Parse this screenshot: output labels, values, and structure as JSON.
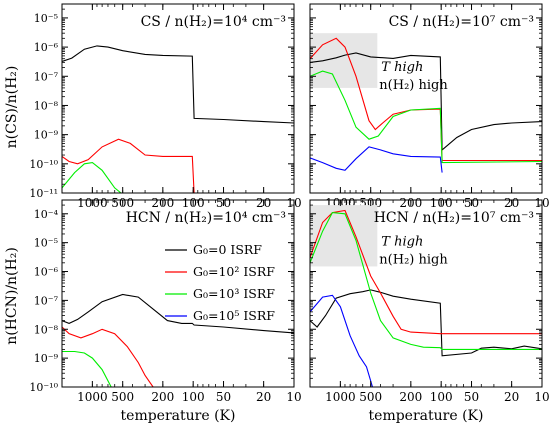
{
  "figure": {
    "shared_xlabel": "temperature (K)",
    "legend": {
      "entries": [
        {
          "label": "G₀=0 ISRF",
          "color": "#000000"
        },
        {
          "label": "G₀=10² ISRF",
          "color": "#ff0000"
        },
        {
          "label": "G₀=10³ ISRF",
          "color": "#00ee00"
        },
        {
          "label": "G₀=10⁵ ISRF",
          "color": "#0000ff"
        }
      ]
    },
    "annotation": {
      "line1": "T high",
      "line2": "n(H₂) high"
    }
  },
  "chart_data": [
    {
      "type": "line",
      "title": "CS / n(H₂)=10⁴ cm⁻³",
      "xlabel": "temperature (K)",
      "ylabel": "n(CS)/n(H₂)",
      "x_scale": "log (reversed)",
      "xlim": [
        2000,
        10
      ],
      "y_scale": "log",
      "ylim": [
        1e-11,
        3e-05
      ],
      "x_ticks": [
        1000,
        500,
        200,
        100,
        50,
        20,
        10
      ],
      "y_ticks": [
        "10⁻¹¹",
        "10⁻¹⁰",
        "10⁻⁹",
        "10⁻⁸",
        "10⁻⁷",
        "10⁻⁶",
        "10⁻⁵"
      ],
      "series": [
        {
          "name": "G₀=0 ISRF",
          "color": "#000000",
          "points": [
            [
              2000,
              3.2e-07
            ],
            [
              1600,
              4.2e-07
            ],
            [
              1200,
              8.5e-07
            ],
            [
              900,
              1.1e-06
            ],
            [
              700,
              1e-06
            ],
            [
              500,
              7.5e-07
            ],
            [
              300,
              5.6e-07
            ],
            [
              200,
              5.2e-07
            ],
            [
              102,
              4.9e-07
            ],
            [
              98,
              3.6e-09
            ],
            [
              50,
              3.3e-09
            ],
            [
              20,
              2.8e-09
            ],
            [
              10,
              2.5e-09
            ]
          ]
        },
        {
          "name": "G₀=10² ISRF",
          "color": "#ff0000",
          "points": [
            [
              2000,
              1.8e-10
            ],
            [
              1700,
              1.2e-10
            ],
            [
              1400,
              1e-10
            ],
            [
              1100,
              1.4e-10
            ],
            [
              800,
              3.8e-10
            ],
            [
              550,
              7e-10
            ],
            [
              420,
              5e-10
            ],
            [
              300,
              2e-10
            ],
            [
              200,
              1.8e-10
            ],
            [
              102,
              1.8e-10
            ],
            [
              98,
              1e-11
            ]
          ]
        },
        {
          "name": "G₀=10³ ISRF",
          "color": "#00ee00",
          "points": [
            [
              2000,
              1.5e-11
            ],
            [
              1500,
              5e-11
            ],
            [
              1200,
              1e-10
            ],
            [
              1000,
              1.1e-10
            ],
            [
              800,
              6e-11
            ],
            [
              600,
              1.5e-11
            ],
            [
              520,
              1e-11
            ]
          ]
        }
      ]
    },
    {
      "type": "line",
      "title": "CS / n(H₂)=10⁷ cm⁻³",
      "xlabel": "temperature (K)",
      "x_scale": "log (reversed)",
      "xlim": [
        2000,
        10
      ],
      "y_scale": "log",
      "ylim": [
        1e-11,
        3e-05
      ],
      "x_ticks": [
        1000,
        500,
        200,
        100,
        50,
        20,
        10
      ],
      "series": [
        {
          "name": "G₀=0 ISRF",
          "color": "#000000",
          "points": [
            [
              2000,
              3e-07
            ],
            [
              1500,
              3.4e-07
            ],
            [
              1100,
              4.3e-07
            ],
            [
              900,
              5.3e-07
            ],
            [
              700,
              6.3e-07
            ],
            [
              500,
              4.6e-07
            ],
            [
              300,
              4.1e-07
            ],
            [
              200,
              5.2e-07
            ],
            [
              102,
              4.6e-07
            ],
            [
              98,
              3e-10
            ],
            [
              70,
              8e-10
            ],
            [
              50,
              1.5e-09
            ],
            [
              30,
              2.2e-09
            ],
            [
              20,
              2.5e-09
            ],
            [
              10,
              2.8e-09
            ]
          ]
        },
        {
          "name": "G₀=10² ISRF",
          "color": "#ff0000",
          "points": [
            [
              2000,
              4e-07
            ],
            [
              1500,
              1.2e-06
            ],
            [
              1100,
              2e-06
            ],
            [
              900,
              1e-06
            ],
            [
              700,
              1e-07
            ],
            [
              520,
              3e-09
            ],
            [
              450,
              1.5e-09
            ],
            [
              380,
              2.5e-09
            ],
            [
              300,
              5e-09
            ],
            [
              200,
              7e-09
            ],
            [
              102,
              7.5e-09
            ],
            [
              98,
              1.3e-10
            ],
            [
              10,
              1.3e-10
            ]
          ]
        },
        {
          "name": "G₀=10³ ISRF",
          "color": "#00ee00",
          "points": [
            [
              2000,
              1e-07
            ],
            [
              1500,
              1.5e-07
            ],
            [
              1200,
              1.2e-07
            ],
            [
              900,
              1.5e-08
            ],
            [
              700,
              1.8e-09
            ],
            [
              520,
              7e-10
            ],
            [
              420,
              9e-10
            ],
            [
              300,
              4.2e-09
            ],
            [
              200,
              7e-09
            ],
            [
              102,
              8e-09
            ],
            [
              98,
              1.1e-10
            ],
            [
              10,
              1.2e-10
            ]
          ]
        },
        {
          "name": "G₀=10⁵ ISRF",
          "color": "#0000ff",
          "points": [
            [
              2000,
              1.6e-10
            ],
            [
              1500,
              1.1e-10
            ],
            [
              1100,
              7e-11
            ],
            [
              900,
              6e-11
            ],
            [
              700,
              1.5e-10
            ],
            [
              520,
              3.8e-10
            ],
            [
              400,
              3e-10
            ],
            [
              300,
              2.2e-10
            ],
            [
              200,
              1.8e-10
            ],
            [
              102,
              1.7e-10
            ],
            [
              98,
              5e-11
            ]
          ]
        }
      ]
    },
    {
      "type": "line",
      "title": "HCN / n(H₂)=10⁴ cm⁻³",
      "xlabel": "temperature (K)",
      "ylabel": "n(HCN)/n(H₂)",
      "x_scale": "log (reversed)",
      "xlim": [
        2000,
        10
      ],
      "y_scale": "log",
      "ylim": [
        1e-10,
        0.0003
      ],
      "x_ticks": [
        1000,
        500,
        200,
        100,
        50,
        20,
        10
      ],
      "y_ticks": [
        "10⁻¹⁰",
        "10⁻⁹",
        "10⁻⁸",
        "10⁻⁷",
        "10⁻⁶",
        "10⁻⁵",
        "10⁻⁴"
      ],
      "series": [
        {
          "name": "G₀=0 ISRF",
          "color": "#000000",
          "points": [
            [
              2000,
              2e-08
            ],
            [
              1700,
              1.6e-08
            ],
            [
              1400,
              2.2e-08
            ],
            [
              1100,
              4e-08
            ],
            [
              800,
              9e-08
            ],
            [
              500,
              1.6e-07
            ],
            [
              350,
              1.3e-07
            ],
            [
              250,
              5e-08
            ],
            [
              180,
              2e-08
            ],
            [
              130,
              1.6e-08
            ],
            [
              102,
              1.6e-08
            ],
            [
              98,
              1.4e-08
            ],
            [
              50,
              1.2e-08
            ],
            [
              20,
              9e-09
            ],
            [
              10,
              7.5e-09
            ]
          ]
        },
        {
          "name": "G₀=10² ISRF",
          "color": "#ff0000",
          "points": [
            [
              2000,
              1.2e-08
            ],
            [
              1700,
              7e-09
            ],
            [
              1300,
              5e-09
            ],
            [
              1000,
              7e-09
            ],
            [
              800,
              1e-08
            ],
            [
              600,
              7e-09
            ],
            [
              450,
              2.5e-09
            ],
            [
              350,
              7e-10
            ],
            [
              300,
              2.5e-10
            ],
            [
              250,
              1e-10
            ]
          ]
        },
        {
          "name": "G₀=10³ ISRF",
          "color": "#00ee00",
          "points": [
            [
              2000,
              1.7e-09
            ],
            [
              1500,
              1.7e-09
            ],
            [
              1200,
              1.5e-09
            ],
            [
              1000,
              1e-09
            ],
            [
              800,
              4e-10
            ],
            [
              650,
              1e-10
            ]
          ]
        }
      ]
    },
    {
      "type": "line",
      "title": "HCN / n(H₂)=10⁷ cm⁻³",
      "xlabel": "temperature (K)",
      "x_scale": "log (reversed)",
      "xlim": [
        2000,
        10
      ],
      "y_scale": "log",
      "ylim": [
        1e-10,
        0.0003
      ],
      "x_ticks": [
        1000,
        500,
        200,
        100,
        50,
        20,
        10
      ],
      "series": [
        {
          "name": "G₀=0 ISRF",
          "color": "#000000",
          "points": [
            [
              2000,
              2e-08
            ],
            [
              1700,
              1.2e-08
            ],
            [
              1400,
              3e-08
            ],
            [
              1100,
              1.2e-07
            ],
            [
              800,
              1.7e-07
            ],
            [
              600,
              2e-07
            ],
            [
              500,
              2.3e-07
            ],
            [
              400,
              1.9e-07
            ],
            [
              300,
              1.4e-07
            ],
            [
              200,
              1.1e-07
            ],
            [
              102,
              8e-08
            ],
            [
              98,
              1.2e-09
            ],
            [
              50,
              1.5e-09
            ],
            [
              40,
              2.2e-09
            ],
            [
              30,
              2.4e-09
            ],
            [
              20,
              2.1e-09
            ],
            [
              15,
              2.6e-09
            ],
            [
              10,
              2.1e-09
            ]
          ]
        },
        {
          "name": "G₀=10² ISRF",
          "color": "#ff0000",
          "points": [
            [
              2000,
              3e-06
            ],
            [
              1500,
              5e-05
            ],
            [
              1200,
              0.00011
            ],
            [
              900,
              0.00013
            ],
            [
              700,
              1.6e-05
            ],
            [
              500,
              7e-07
            ],
            [
              400,
              1.8e-07
            ],
            [
              300,
              2.8e-08
            ],
            [
              250,
              1e-08
            ],
            [
              200,
              8e-09
            ],
            [
              102,
              7e-09
            ],
            [
              50,
              7e-09
            ],
            [
              10,
              7e-09
            ]
          ]
        },
        {
          "name": "G₀=10³ ISRF",
          "color": "#00ee00",
          "points": [
            [
              2000,
              2e-06
            ],
            [
              1500,
              2.5e-05
            ],
            [
              1200,
              0.00011
            ],
            [
              900,
              0.0001
            ],
            [
              700,
              1.2e-05
            ],
            [
              500,
              1.8e-07
            ],
            [
              400,
              2e-08
            ],
            [
              300,
              5e-09
            ],
            [
              200,
              3e-09
            ],
            [
              150,
              2.4e-09
            ],
            [
              102,
              2.3e-09
            ],
            [
              98,
              2e-09
            ],
            [
              10,
              2e-09
            ]
          ]
        },
        {
          "name": "G₀=10⁵ ISRF",
          "color": "#0000ff",
          "points": [
            [
              2000,
              4e-08
            ],
            [
              1500,
              1.3e-07
            ],
            [
              1200,
              1.5e-07
            ],
            [
              1000,
              6e-08
            ],
            [
              800,
              6e-09
            ],
            [
              650,
              1.2e-09
            ],
            [
              550,
              5e-10
            ],
            [
              480,
              1e-10
            ]
          ]
        }
      ]
    }
  ]
}
